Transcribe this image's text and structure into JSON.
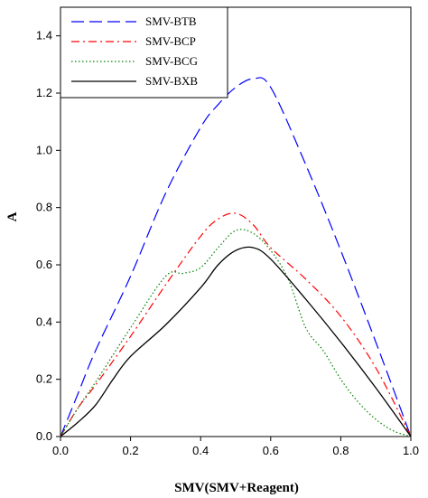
{
  "chart_data": {
    "type": "line",
    "title": "",
    "xlabel": "SMV(SMV+Reagent)",
    "ylabel": "A",
    "xlim": [
      0.0,
      1.0
    ],
    "ylim": [
      0.0,
      1.5
    ],
    "x_ticks": [
      0.0,
      0.2,
      0.4,
      0.6,
      0.8,
      1.0
    ],
    "x_tick_labels": [
      "0.0",
      "0.2",
      "0.4",
      "0.6",
      "0.8",
      "1.0"
    ],
    "y_ticks": [
      0.0,
      0.2,
      0.4,
      0.6,
      0.8,
      1.0,
      1.2,
      1.4
    ],
    "y_tick_labels": [
      "0.0",
      "0.2",
      "0.4",
      "0.6",
      "0.8",
      "1.0",
      "1.2",
      "1.4"
    ],
    "grid": false,
    "legend_position": "top-left",
    "series": [
      {
        "name": "SMV-BTB",
        "color": "#0000ff",
        "dash": "dashed",
        "x": [
          0.0,
          0.05,
          0.1,
          0.2,
          0.3,
          0.4,
          0.45,
          0.5,
          0.55,
          0.6,
          0.7,
          0.8,
          0.9,
          1.0
        ],
        "y": [
          0.0,
          0.15,
          0.3,
          0.56,
          0.85,
          1.08,
          1.16,
          1.22,
          1.25,
          1.22,
          0.95,
          0.65,
          0.33,
          0.0
        ]
      },
      {
        "name": "SMV-BCP",
        "color": "#ff0000",
        "dash": "dash-dot",
        "x": [
          0.0,
          0.05,
          0.1,
          0.2,
          0.3,
          0.4,
          0.45,
          0.5,
          0.55,
          0.6,
          0.7,
          0.8,
          0.9,
          1.0
        ],
        "y": [
          0.0,
          0.1,
          0.18,
          0.35,
          0.53,
          0.7,
          0.76,
          0.78,
          0.74,
          0.66,
          0.55,
          0.42,
          0.24,
          0.0
        ]
      },
      {
        "name": "SMV-BCG",
        "color": "#008000",
        "dash": "dotted",
        "x": [
          0.0,
          0.05,
          0.1,
          0.2,
          0.3,
          0.35,
          0.4,
          0.45,
          0.5,
          0.55,
          0.6,
          0.65,
          0.7,
          0.75,
          0.8,
          0.85,
          0.9,
          0.95,
          1.0
        ],
        "y": [
          0.0,
          0.1,
          0.19,
          0.38,
          0.56,
          0.57,
          0.59,
          0.66,
          0.72,
          0.71,
          0.65,
          0.55,
          0.38,
          0.3,
          0.2,
          0.12,
          0.06,
          0.02,
          0.0
        ]
      },
      {
        "name": "SMV-BXB",
        "color": "#000000",
        "dash": "solid",
        "x": [
          0.0,
          0.05,
          0.1,
          0.15,
          0.2,
          0.3,
          0.4,
          0.45,
          0.5,
          0.55,
          0.6,
          0.7,
          0.8,
          0.9,
          1.0
        ],
        "y": [
          0.0,
          0.05,
          0.11,
          0.2,
          0.28,
          0.39,
          0.52,
          0.6,
          0.65,
          0.66,
          0.62,
          0.48,
          0.33,
          0.17,
          0.0
        ]
      }
    ]
  }
}
